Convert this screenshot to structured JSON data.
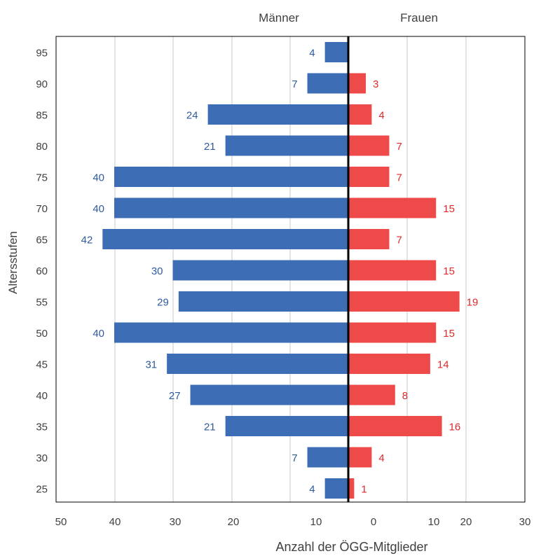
{
  "chart_data": {
    "type": "bar",
    "orientation": "horizontal",
    "subtype": "population-pyramid",
    "categories": [
      "95",
      "90",
      "85",
      "80",
      "75",
      "70",
      "65",
      "60",
      "55",
      "50",
      "45",
      "40",
      "35",
      "30",
      "25"
    ],
    "series": [
      {
        "name": "Männer",
        "color": "#3d6db5",
        "label_color": "#2e5a9e",
        "values": [
          4,
          7,
          24,
          21,
          40,
          40,
          42,
          30,
          29,
          40,
          31,
          27,
          21,
          7,
          4
        ]
      },
      {
        "name": "Frauen",
        "color": "#ef4a4a",
        "label_color": "#e0292b",
        "values": [
          null,
          3,
          4,
          7,
          7,
          15,
          7,
          15,
          19,
          15,
          14,
          8,
          16,
          4,
          1
        ]
      }
    ],
    "xlabel": "Anzahl der ÖGG-Mitglieder",
    "ylabel": "Altersstufen",
    "x_ticks": [
      "50",
      "40",
      "30",
      "20",
      "10",
      "0",
      "10",
      "20",
      "30"
    ],
    "grid": "vertical",
    "legend": "top"
  }
}
